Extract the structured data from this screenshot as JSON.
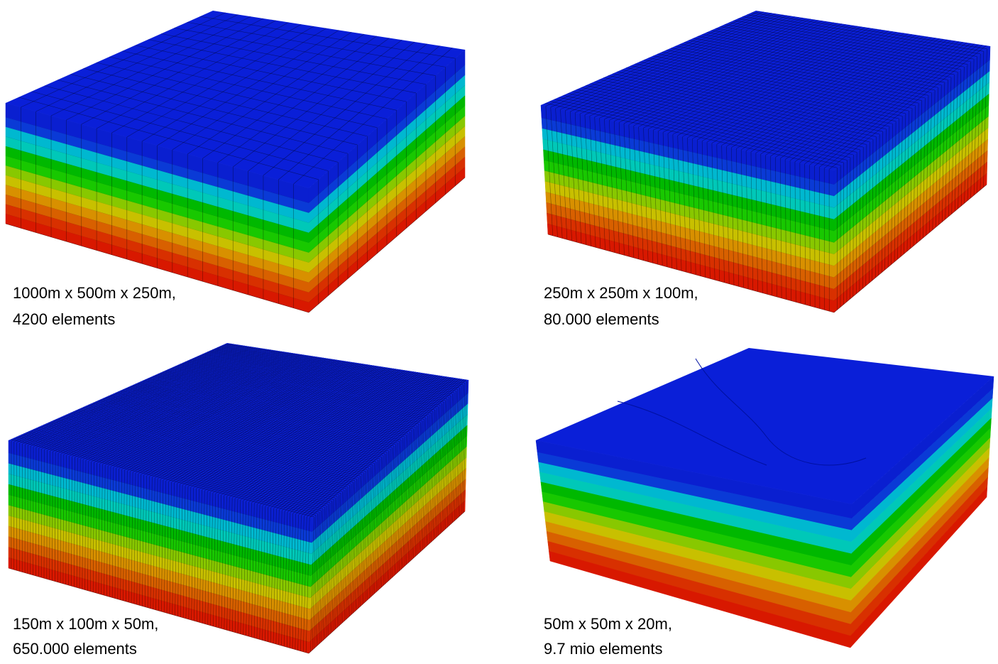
{
  "panels": [
    {
      "caption": [
        "1000m x 500m x 250m,",
        "4200 elements"
      ]
    },
    {
      "caption": [
        "250m x 250m x 100m,",
        "80.000 elements"
      ]
    },
    {
      "caption": [
        "150m x 100m x 50m,",
        "650.000 elements"
      ]
    },
    {
      "caption": [
        "50m x 50m x 20m,",
        "9.7 mio elements"
      ]
    }
  ]
}
